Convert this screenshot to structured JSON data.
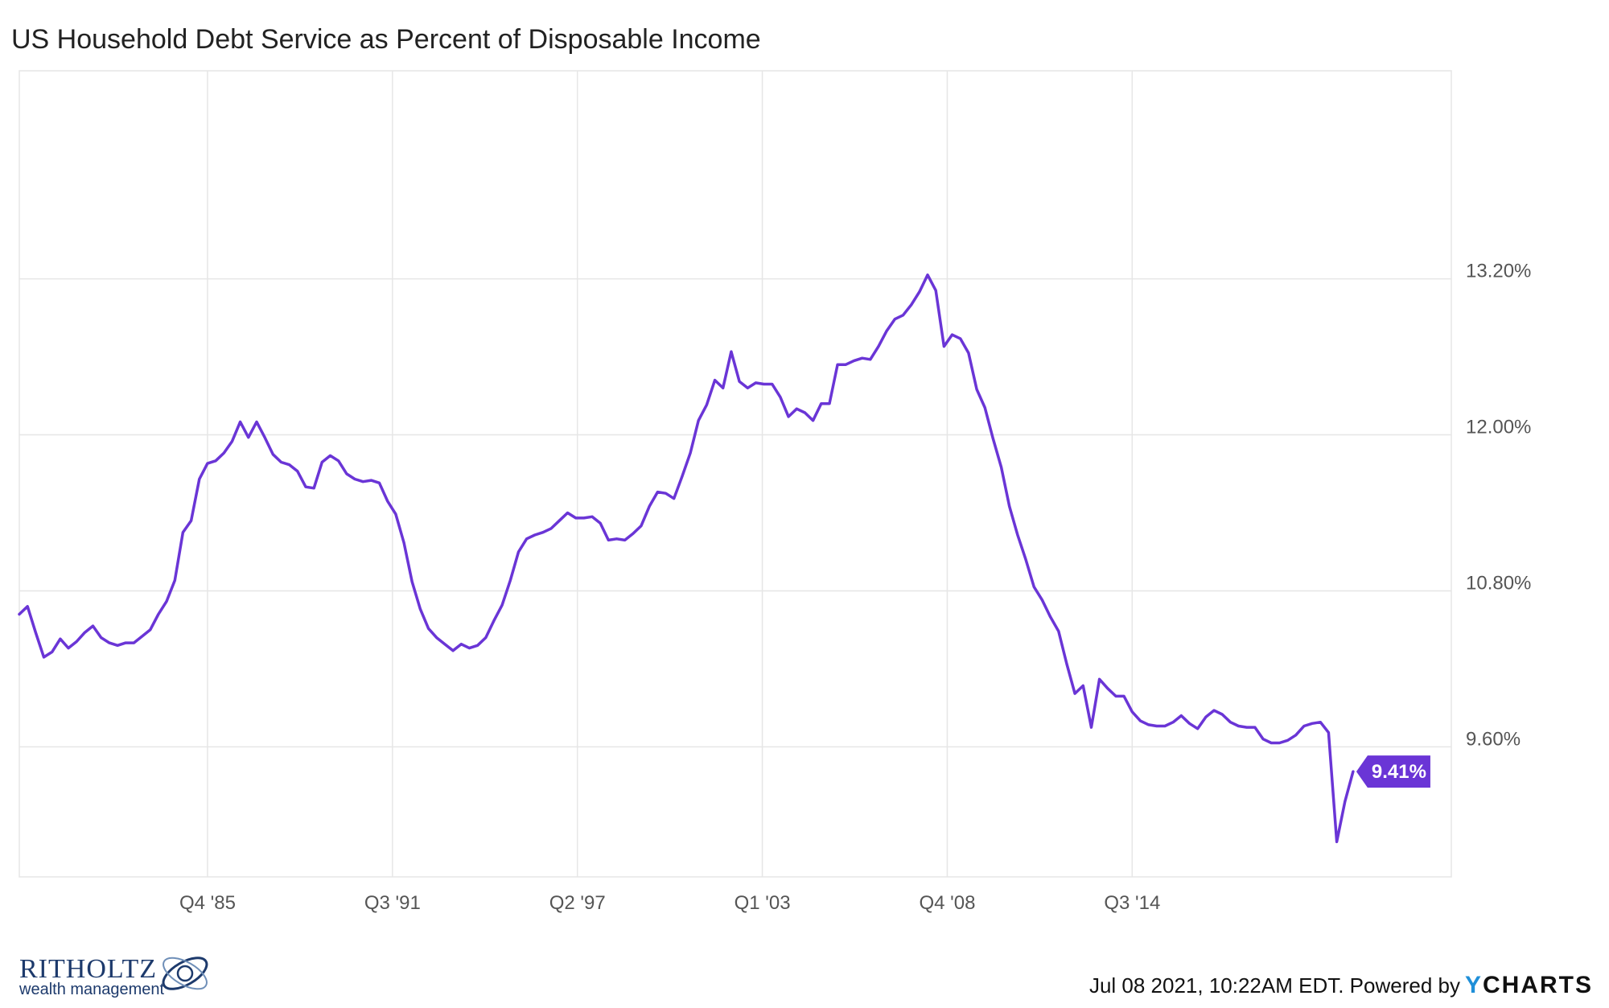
{
  "title": "US Household Debt Service as Percent of Disposable Income",
  "footer": {
    "brand_name": "RITHOLTZ",
    "brand_sub": "wealth management",
    "timestamp": "Jul 08 2021, 10:22AM EDT.  Powered by",
    "powered_y": "Y",
    "powered_rest": "CHARTS"
  },
  "colors": {
    "series": "#6a35d6",
    "grid": "#e6e6e6",
    "axis_text": "#555555",
    "badge_text": "#ffffff"
  },
  "chart_data": {
    "type": "line",
    "title": "US Household Debt Service as Percent of Disposable Income",
    "xlabel": "",
    "ylabel": "",
    "x_ticks": [
      "Q4 '85",
      "Q3 '91",
      "Q2 '97",
      "Q1 '03",
      "Q4 '08",
      "Q3 '14"
    ],
    "y_ticks": [
      "9.60%",
      "10.80%",
      "12.00%",
      "13.20%"
    ],
    "y_tick_values": [
      9.6,
      10.8,
      12.0,
      13.2
    ],
    "ylim": [
      8.6,
      14.8
    ],
    "xlim": [
      "Q1 '80",
      "Q1 '21"
    ],
    "grid": true,
    "legend": "none",
    "last_value_label": "9.41%",
    "series": [
      {
        "values": [
          10.62,
          10.68,
          10.48,
          10.29,
          10.33,
          10.43,
          10.36,
          10.41,
          10.48,
          10.53,
          10.44,
          10.4,
          10.38,
          10.4,
          10.4,
          10.45,
          10.5,
          10.62,
          10.72,
          10.88,
          11.25,
          11.34,
          11.66,
          11.78,
          11.8,
          11.86,
          11.95,
          12.1,
          11.98,
          12.1,
          11.98,
          11.85,
          11.79,
          11.77,
          11.72,
          11.6,
          11.59,
          11.79,
          11.84,
          11.8,
          11.7,
          11.66,
          11.64,
          11.65,
          11.63,
          11.49,
          11.39,
          11.17,
          10.87,
          10.66,
          10.51,
          10.44,
          10.39,
          10.34,
          10.39,
          10.36,
          10.38,
          10.44,
          10.57,
          10.69,
          10.88,
          11.1,
          11.2,
          11.23,
          11.25,
          11.28,
          11.34,
          11.4,
          11.36,
          11.36,
          11.37,
          11.32,
          11.19,
          11.2,
          11.19,
          11.24,
          11.3,
          11.45,
          11.56,
          11.55,
          11.51,
          11.68,
          11.86,
          12.11,
          12.23,
          12.42,
          12.36,
          12.64,
          12.41,
          12.36,
          12.4,
          12.39,
          12.39,
          12.29,
          12.14,
          12.2,
          12.17,
          12.11,
          12.24,
          12.24,
          12.54,
          12.54,
          12.57,
          12.59,
          12.58,
          12.68,
          12.8,
          12.89,
          12.92,
          13.0,
          13.1,
          13.23,
          13.11,
          12.68,
          12.77,
          12.74,
          12.63,
          12.35,
          12.21,
          11.97,
          11.75,
          11.45,
          11.23,
          11.04,
          10.83,
          10.73,
          10.6,
          10.49,
          10.24,
          10.01,
          10.07,
          9.75,
          10.12,
          10.05,
          9.99,
          9.99,
          9.87,
          9.8,
          9.77,
          9.76,
          9.76,
          9.79,
          9.84,
          9.78,
          9.74,
          9.83,
          9.88,
          9.85,
          9.79,
          9.76,
          9.75,
          9.75,
          9.66,
          9.63,
          9.63,
          9.65,
          9.69,
          9.76,
          9.78,
          9.79,
          9.71,
          8.87,
          9.18,
          9.41
        ]
      }
    ]
  }
}
